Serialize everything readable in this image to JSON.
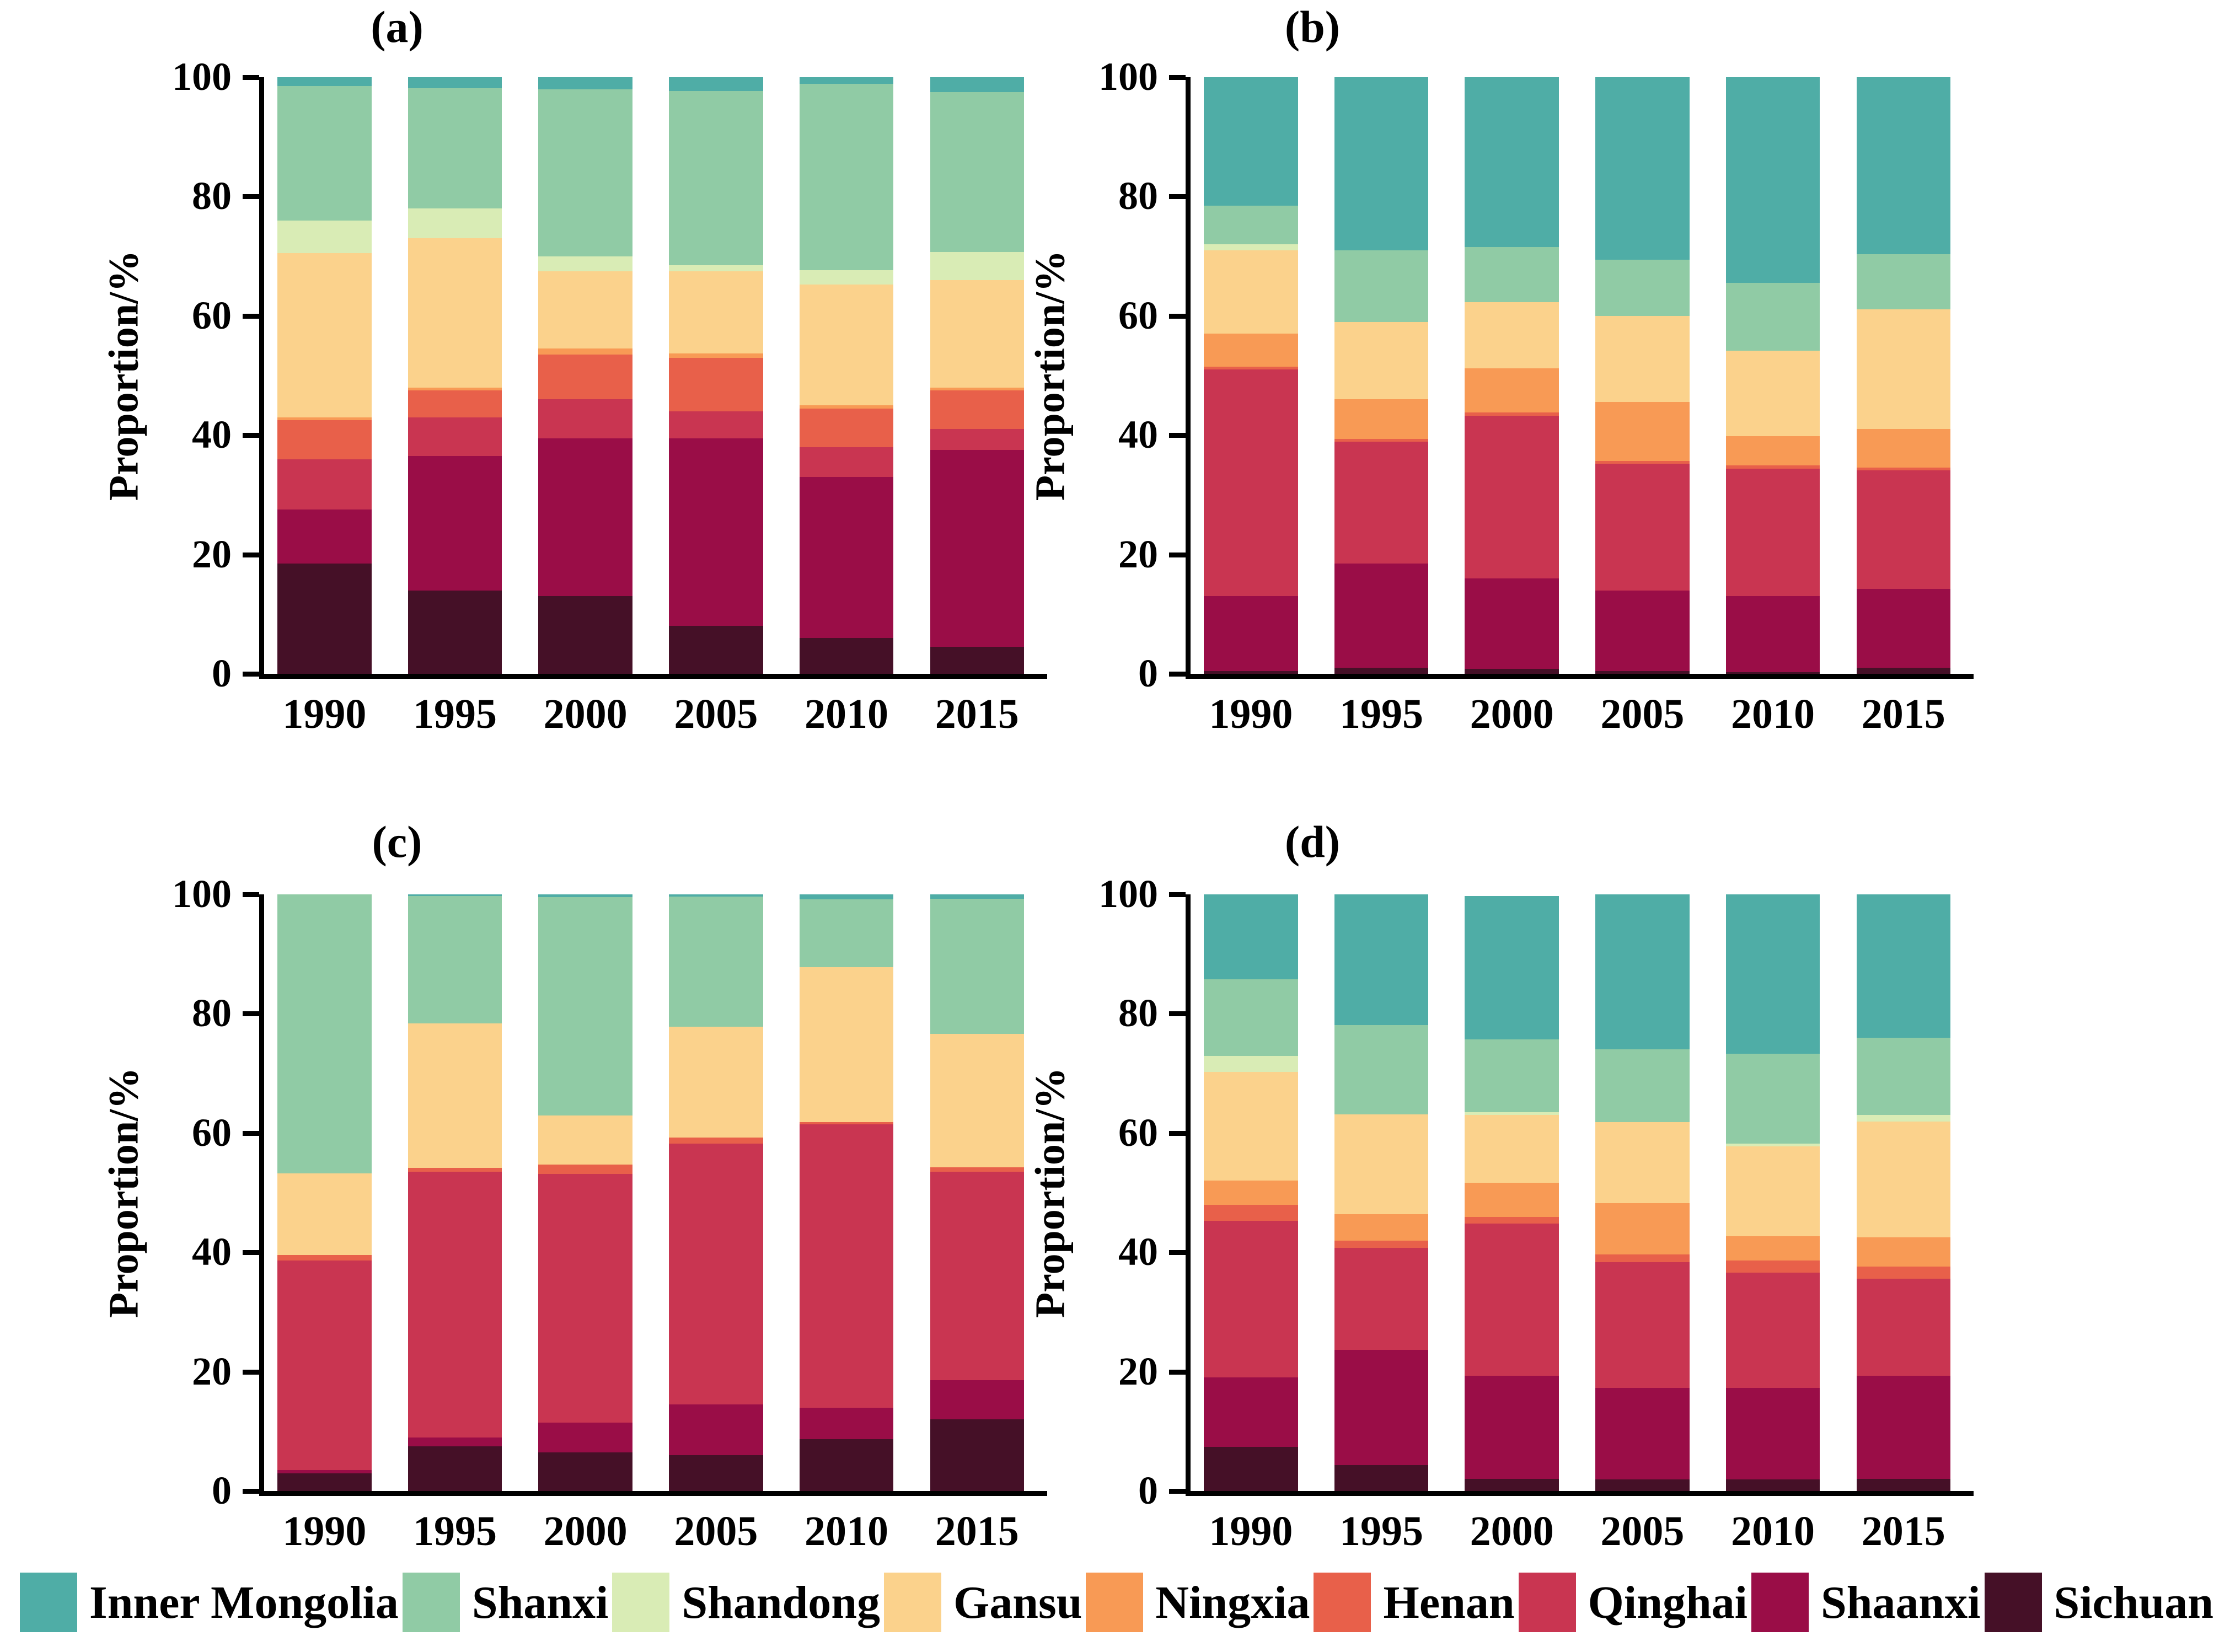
{
  "figure": {
    "ylabel": "Proportion/%",
    "yticks": [
      0,
      20,
      40,
      60,
      80,
      100
    ],
    "years": [
      "1990",
      "1995",
      "2000",
      "2005",
      "2010",
      "2015"
    ]
  },
  "legend": {
    "items": [
      {
        "label": "Inner Mongolia",
        "color": "#4fada6"
      },
      {
        "label": "Shanxi",
        "color": "#90cba5"
      },
      {
        "label": "Shandong",
        "color": "#d9ecb5"
      },
      {
        "label": "Gansu",
        "color": "#fbd28c"
      },
      {
        "label": "Ningxia",
        "color": "#f89a55"
      },
      {
        "label": "Henan",
        "color": "#e8604a"
      },
      {
        "label": "Qinghai",
        "color": "#c93551"
      },
      {
        "label": "Shaanxi",
        "color": "#9a0d47"
      },
      {
        "label": "Sichuan",
        "color": "#451027"
      }
    ]
  },
  "chart_data": [
    {
      "type": "bar",
      "stacked": true,
      "title": "(a)",
      "categories": [
        "1990",
        "1995",
        "2000",
        "2005",
        "2010",
        "2015"
      ],
      "xlabel": "",
      "ylabel": "Proportion/%",
      "ylim": [
        0,
        100
      ],
      "grid": false,
      "legend_position": "bottom-shared",
      "series": [
        {
          "name": "Inner Mongolia",
          "color": "#4fada6",
          "values": [
            1.5,
            1.8,
            2.0,
            2.3,
            1.1,
            2.5
          ]
        },
        {
          "name": "Shanxi",
          "color": "#90cba5",
          "values": [
            22.5,
            20.2,
            28.0,
            29.2,
            31.2,
            26.8
          ]
        },
        {
          "name": "Shandong",
          "color": "#d9ecb5",
          "values": [
            5.5,
            5.0,
            2.5,
            1.0,
            2.4,
            4.7
          ]
        },
        {
          "name": "Gansu",
          "color": "#fbd28c",
          "values": [
            27.5,
            25.0,
            13.0,
            13.8,
            20.3,
            18.0
          ]
        },
        {
          "name": "Ningxia",
          "color": "#f89a55",
          "values": [
            0.5,
            0.5,
            1.0,
            0.7,
            0.5,
            0.5
          ]
        },
        {
          "name": "Henan",
          "color": "#e8604a",
          "values": [
            6.5,
            4.5,
            7.5,
            9.0,
            6.5,
            6.5
          ]
        },
        {
          "name": "Qinghai",
          "color": "#c93551",
          "values": [
            8.5,
            6.5,
            6.5,
            4.5,
            5.0,
            3.5
          ]
        },
        {
          "name": "Shaanxi",
          "color": "#9a0d47",
          "values": [
            9.0,
            22.5,
            26.5,
            31.5,
            27.0,
            33.0
          ]
        },
        {
          "name": "Sichuan",
          "color": "#451027",
          "values": [
            18.5,
            14.0,
            13.0,
            8.0,
            6.0,
            4.5
          ]
        }
      ]
    },
    {
      "type": "bar",
      "stacked": true,
      "title": "(b)",
      "categories": [
        "1990",
        "1995",
        "2000",
        "2005",
        "2010",
        "2015"
      ],
      "xlabel": "",
      "ylabel": "Proportion/%",
      "ylim": [
        0,
        100
      ],
      "grid": false,
      "legend_position": "bottom-shared",
      "series": [
        {
          "name": "Inner Mongolia",
          "color": "#4fada6",
          "values": [
            21.5,
            29.0,
            28.5,
            30.6,
            34.5,
            29.7
          ]
        },
        {
          "name": "Shanxi",
          "color": "#90cba5",
          "values": [
            6.5,
            12.0,
            9.2,
            9.4,
            11.3,
            9.2
          ]
        },
        {
          "name": "Shandong",
          "color": "#d9ecb5",
          "values": [
            1.0,
            0,
            0,
            0,
            0,
            0
          ]
        },
        {
          "name": "Gansu",
          "color": "#fbd28c",
          "values": [
            14.0,
            13.0,
            11.1,
            14.4,
            14.4,
            20.1
          ]
        },
        {
          "name": "Ningxia",
          "color": "#f89a55",
          "values": [
            5.5,
            6.6,
            7.4,
            9.9,
            4.9,
            6.4
          ]
        },
        {
          "name": "Henan",
          "color": "#e8604a",
          "values": [
            0.5,
            0.5,
            0.5,
            0.5,
            0.5,
            0.5
          ]
        },
        {
          "name": "Qinghai",
          "color": "#c93551",
          "values": [
            38.0,
            20.4,
            27.3,
            21.2,
            21.4,
            19.9
          ]
        },
        {
          "name": "Shaanxi",
          "color": "#9a0d47",
          "values": [
            12.5,
            17.5,
            15.2,
            13.5,
            12.7,
            13.2
          ]
        },
        {
          "name": "Sichuan",
          "color": "#451027",
          "values": [
            0.5,
            1.0,
            0.8,
            0.5,
            0.3,
            1.0
          ]
        }
      ]
    },
    {
      "type": "bar",
      "stacked": true,
      "title": "(c)",
      "categories": [
        "1990",
        "1995",
        "2000",
        "2005",
        "2010",
        "2015"
      ],
      "xlabel": "",
      "ylabel": "Proportion/%",
      "ylim": [
        0,
        100
      ],
      "grid": false,
      "legend_position": "bottom-shared",
      "series": [
        {
          "name": "Inner Mongolia",
          "color": "#4fada6",
          "values": [
            0,
            0.3,
            0.5,
            0.4,
            0.8,
            0.7
          ]
        },
        {
          "name": "Shanxi",
          "color": "#90cba5",
          "values": [
            46.8,
            21.3,
            36.6,
            21.8,
            11.4,
            22.7
          ]
        },
        {
          "name": "Shandong",
          "color": "#d9ecb5",
          "values": [
            0,
            0,
            0,
            0,
            0,
            0
          ]
        },
        {
          "name": "Gansu",
          "color": "#fbd28c",
          "values": [
            13.6,
            24.2,
            8.2,
            18.6,
            26.0,
            22.3
          ]
        },
        {
          "name": "Ningxia",
          "color": "#f89a55",
          "values": [
            0,
            0,
            0,
            0,
            0,
            0
          ]
        },
        {
          "name": "Henan",
          "color": "#e8604a",
          "values": [
            1.0,
            0.7,
            1.6,
            1.0,
            0.3,
            0.8
          ]
        },
        {
          "name": "Qinghai",
          "color": "#c93551",
          "values": [
            35.1,
            44.5,
            41.6,
            43.7,
            47.5,
            34.9
          ]
        },
        {
          "name": "Shaanxi",
          "color": "#9a0d47",
          "values": [
            0.5,
            1.5,
            5.0,
            8.5,
            5.3,
            6.6
          ]
        },
        {
          "name": "Sichuan",
          "color": "#451027",
          "values": [
            3.0,
            7.5,
            6.5,
            6.0,
            8.7,
            12.0
          ]
        }
      ]
    },
    {
      "type": "bar",
      "stacked": true,
      "title": "(d)",
      "categories": [
        "1990",
        "1995",
        "2000",
        "2005",
        "2010",
        "2015"
      ],
      "xlabel": "",
      "ylabel": "Proportion/%",
      "ylim": [
        0,
        100
      ],
      "grid": false,
      "legend_position": "bottom-shared",
      "series": [
        {
          "name": "Inner Mongolia",
          "color": "#4fada6",
          "values": [
            14.2,
            21.9,
            24.0,
            26.5,
            27.2,
            24.0
          ]
        },
        {
          "name": "Shanxi",
          "color": "#90cba5",
          "values": [
            12.9,
            15.0,
            12.2,
            12.4,
            15.4,
            13.0
          ]
        },
        {
          "name": "Shandong",
          "color": "#d9ecb5",
          "values": [
            2.7,
            0,
            0.5,
            0,
            0.5,
            1.1
          ]
        },
        {
          "name": "Gansu",
          "color": "#fbd28c",
          "values": [
            18.2,
            16.7,
            11.3,
            13.9,
            15.3,
            19.4
          ]
        },
        {
          "name": "Ningxia",
          "color": "#f89a55",
          "values": [
            4.0,
            4.4,
            5.8,
            8.8,
            4.2,
            4.9
          ]
        },
        {
          "name": "Henan",
          "color": "#e8604a",
          "values": [
            2.7,
            1.2,
            1.1,
            1.3,
            2.1,
            2.0
          ]
        },
        {
          "name": "Qinghai",
          "color": "#c93551",
          "values": [
            26.3,
            17.1,
            25.5,
            21.5,
            19.7,
            16.3
          ]
        },
        {
          "name": "Shaanxi",
          "color": "#9a0d47",
          "values": [
            11.6,
            19.4,
            17.3,
            15.6,
            15.6,
            17.3
          ]
        },
        {
          "name": "Sichuan",
          "color": "#451027",
          "values": [
            7.4,
            4.3,
            2.0,
            2.0,
            2.0,
            2.0
          ]
        }
      ]
    }
  ]
}
